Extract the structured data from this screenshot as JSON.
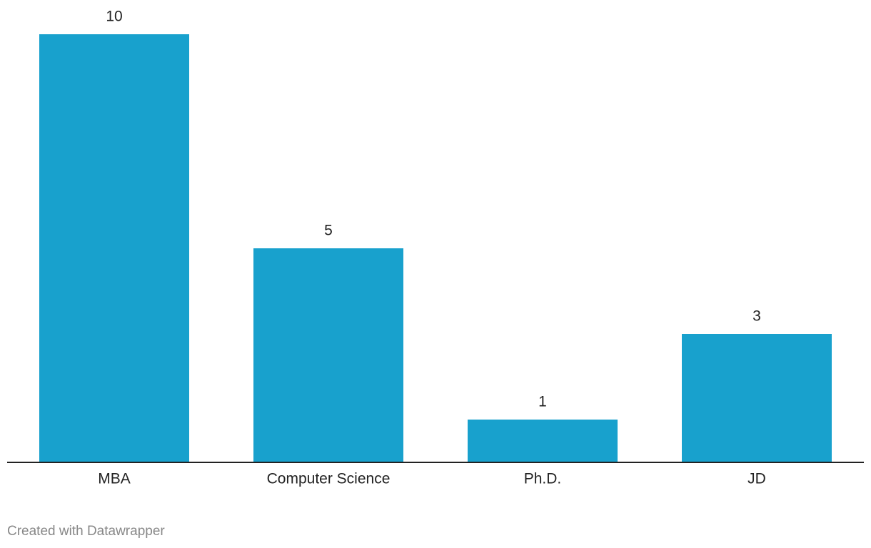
{
  "chart_data": {
    "type": "bar",
    "categories": [
      "MBA",
      "Computer Science",
      "Ph.D.",
      "JD"
    ],
    "values": [
      10,
      5,
      1,
      3
    ],
    "color": "#18a1cd",
    "ylim": [
      0,
      10
    ],
    "grid": false,
    "credit": "Created with Datawrapper"
  }
}
